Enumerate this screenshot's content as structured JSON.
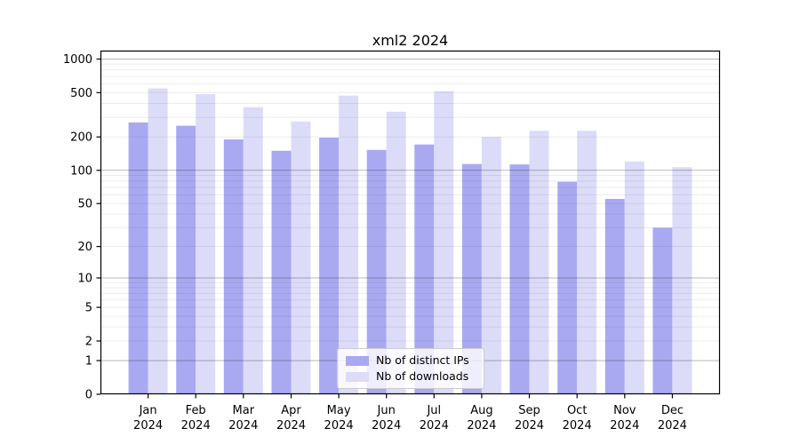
{
  "chart_data": {
    "type": "bar",
    "title": "xml2 2024",
    "categories": [
      "Jan",
      "Feb",
      "Mar",
      "Apr",
      "May",
      "Jun",
      "Jul",
      "Aug",
      "Sep",
      "Oct",
      "Nov",
      "Dec"
    ],
    "category_year": "2024",
    "series": [
      {
        "name": "Nb of distinct IPs",
        "color": "#a9a9f2",
        "values": [
          270,
          252,
          190,
          150,
          197,
          153,
          171,
          114,
          113,
          79,
          55,
          30
        ]
      },
      {
        "name": "Nb of downloads",
        "color": "#dcdcf9",
        "values": [
          545,
          485,
          370,
          275,
          470,
          337,
          516,
          200,
          227,
          227,
          120,
          107
        ]
      }
    ],
    "y_ticks": [
      0,
      1,
      2,
      5,
      10,
      20,
      50,
      100,
      200,
      500,
      1000
    ],
    "y_scale": "log10(value+1)",
    "y_axis_max": 1190,
    "grid": true,
    "legend_position": "lower center",
    "colors": {
      "major_gridline": "rgba(0,0,0,0.28)",
      "minor_gridline": "rgba(0,0,0,0.075)",
      "axis": "#000000"
    }
  }
}
